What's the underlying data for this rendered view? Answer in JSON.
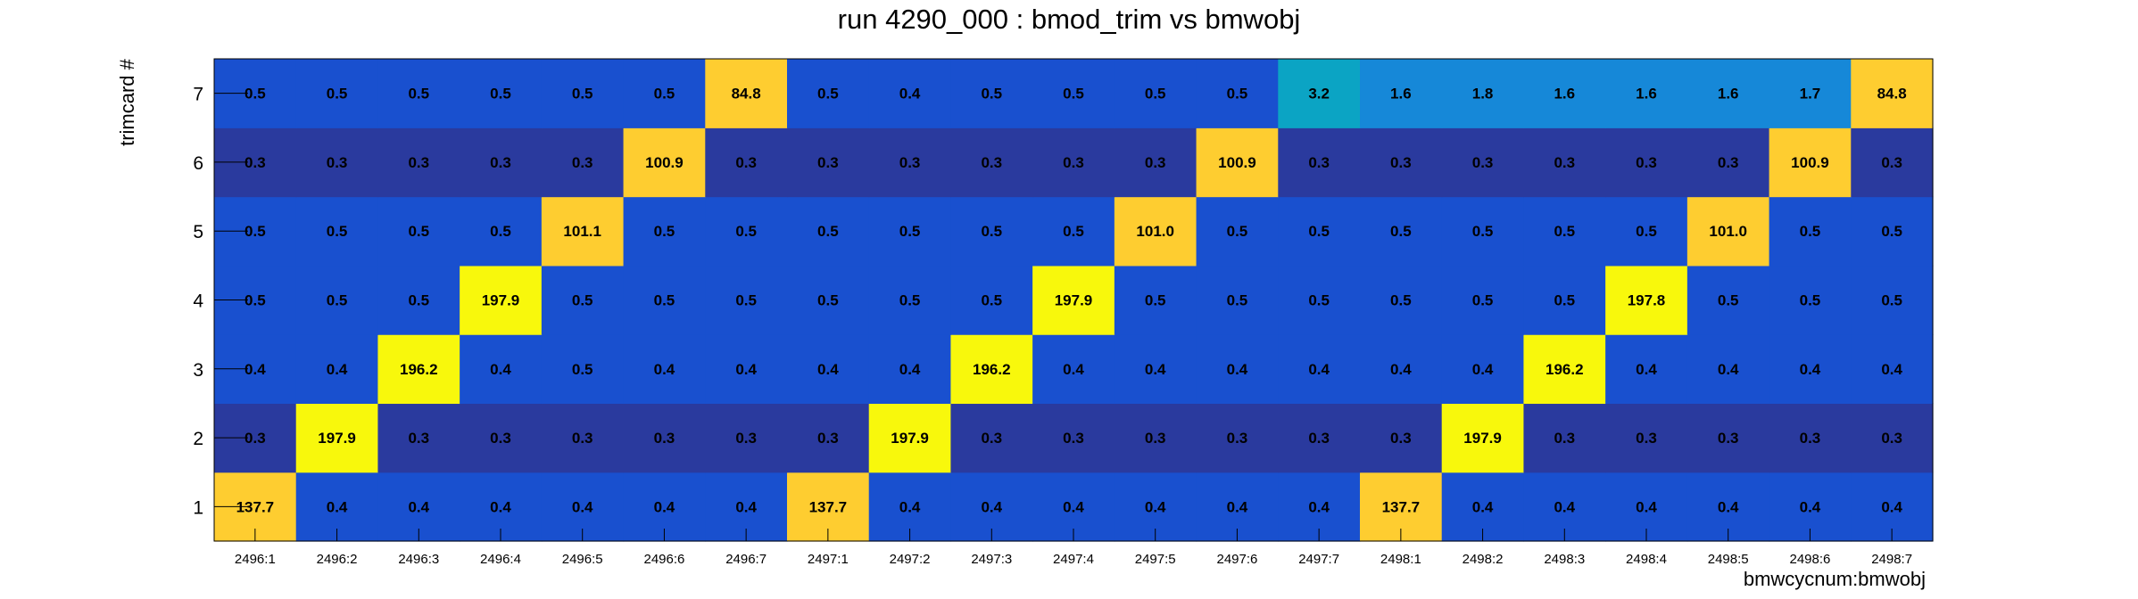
{
  "chart_data": {
    "type": "heatmap",
    "title": "run 4290_000 : bmod_trim vs bmwobj",
    "xlabel": "bmwcycnum:bmwobj",
    "ylabel": "trimcard #",
    "x_categories": [
      "2496:1",
      "2496:2",
      "2496:3",
      "2496:4",
      "2496:5",
      "2496:6",
      "2496:7",
      "2497:1",
      "2497:2",
      "2497:3",
      "2497:4",
      "2497:5",
      "2497:6",
      "2497:7",
      "2498:1",
      "2498:2",
      "2498:3",
      "2498:4",
      "2498:5",
      "2498:6",
      "2498:7"
    ],
    "y_categories": [
      "1",
      "2",
      "3",
      "4",
      "5",
      "6",
      "7"
    ],
    "labels": [
      [
        "137.7",
        "0.4",
        "0.4",
        "0.4",
        "0.4",
        "0.4",
        "0.4",
        "137.7",
        "0.4",
        "0.4",
        "0.4",
        "0.4",
        "0.4",
        "0.4",
        "137.7",
        "0.4",
        "0.4",
        "0.4",
        "0.4",
        "0.4",
        "0.4"
      ],
      [
        "0.3",
        "197.9",
        "0.3",
        "0.3",
        "0.3",
        "0.3",
        "0.3",
        "0.3",
        "197.9",
        "0.3",
        "0.3",
        "0.3",
        "0.3",
        "0.3",
        "0.3",
        "197.9",
        "0.3",
        "0.3",
        "0.3",
        "0.3",
        "0.3"
      ],
      [
        "0.4",
        "0.4",
        "196.2",
        "0.4",
        "0.5",
        "0.4",
        "0.4",
        "0.4",
        "0.4",
        "196.2",
        "0.4",
        "0.4",
        "0.4",
        "0.4",
        "0.4",
        "0.4",
        "196.2",
        "0.4",
        "0.4",
        "0.4",
        "0.4"
      ],
      [
        "0.5",
        "0.5",
        "0.5",
        "197.9",
        "0.5",
        "0.5",
        "0.5",
        "0.5",
        "0.5",
        "0.5",
        "197.9",
        "0.5",
        "0.5",
        "0.5",
        "0.5",
        "0.5",
        "0.5",
        "197.8",
        "0.5",
        "0.5",
        "0.5"
      ],
      [
        "0.5",
        "0.5",
        "0.5",
        "0.5",
        "101.1",
        "0.5",
        "0.5",
        "0.5",
        "0.5",
        "0.5",
        "0.5",
        "101.0",
        "0.5",
        "0.5",
        "0.5",
        "0.5",
        "0.5",
        "0.5",
        "101.0",
        "0.5",
        "0.5"
      ],
      [
        "0.3",
        "0.3",
        "0.3",
        "0.3",
        "0.3",
        "100.9",
        "0.3",
        "0.3",
        "0.3",
        "0.3",
        "0.3",
        "0.3",
        "100.9",
        "0.3",
        "0.3",
        "0.3",
        "0.3",
        "0.3",
        "0.3",
        "100.9",
        "0.3"
      ],
      [
        "0.5",
        "0.5",
        "0.5",
        "0.5",
        "0.5",
        "0.5",
        "84.8",
        "0.5",
        "0.4",
        "0.5",
        "0.5",
        "0.5",
        "0.5",
        "3.2",
        "1.6",
        "1.8",
        "1.6",
        "1.6",
        "1.6",
        "1.7",
        "84.8"
      ]
    ],
    "palette": {
      "low_dark": "#2a3a9e",
      "low": "#1950cf",
      "mid_teal": "#0ba4c4",
      "mid_cyan": "#1688d8",
      "high_orange": "#fecd30",
      "high_yellow": "#f8f80c"
    },
    "grid": false,
    "legend": "none"
  }
}
